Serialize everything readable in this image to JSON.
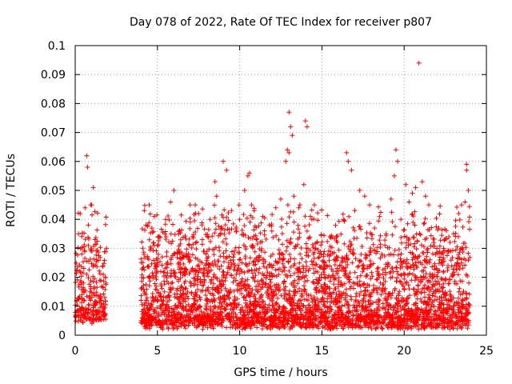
{
  "chart_data": {
    "type": "scatter",
    "title": "Day 078 of 2022, Rate Of TEC Index for receiver p807",
    "xlabel": "GPS time / hours",
    "ylabel": "ROTI / TECUs",
    "xlim": [
      0,
      25
    ],
    "ylim": [
      0,
      0.1
    ],
    "xticks": [
      "0",
      "5",
      "10",
      "15",
      "20",
      "25"
    ],
    "yticks": [
      "0",
      "0.01",
      "0.02",
      "0.03",
      "0.04",
      "0.05",
      "0.06",
      "0.07",
      "0.08",
      "0.09",
      "0.1"
    ],
    "grid": true,
    "marker": "+",
    "color": "#ff0000",
    "series": [
      {
        "points": [
          [
            0.1,
            0.012
          ],
          [
            0.2,
            0.035
          ],
          [
            0.3,
            0.042
          ],
          [
            0.4,
            0.028
          ],
          [
            0.5,
            0.018
          ],
          [
            0.6,
            0.044
          ],
          [
            0.7,
            0.021
          ],
          [
            0.8,
            0.038
          ],
          [
            0.9,
            0.015
          ],
          [
            1.0,
            0.045
          ],
          [
            0.7,
            0.062
          ],
          [
            0.75,
            0.058
          ],
          [
            1.1,
            0.051
          ],
          [
            1.2,
            0.033
          ],
          [
            1.3,
            0.026
          ],
          [
            1.5,
            0.019
          ],
          [
            1.6,
            0.012
          ],
          [
            1.7,
            0.009
          ],
          [
            1.8,
            0.013
          ],
          [
            1.9,
            0.03
          ],
          [
            4.2,
            0.043
          ],
          [
            4.3,
            0.038
          ],
          [
            4.5,
            0.045
          ],
          [
            4.6,
            0.03
          ],
          [
            4.8,
            0.041
          ],
          [
            5.2,
            0.022
          ],
          [
            5.5,
            0.04
          ],
          [
            5.8,
            0.046
          ],
          [
            6.0,
            0.05
          ],
          [
            6.3,
            0.035
          ],
          [
            6.6,
            0.027
          ],
          [
            7.0,
            0.039
          ],
          [
            7.3,
            0.045
          ],
          [
            7.5,
            0.042
          ],
          [
            7.8,
            0.029
          ],
          [
            8.2,
            0.04
          ],
          [
            8.5,
            0.053
          ],
          [
            8.6,
            0.048
          ],
          [
            9.0,
            0.06
          ],
          [
            9.2,
            0.057
          ],
          [
            9.5,
            0.043
          ],
          [
            9.8,
            0.036
          ],
          [
            10.0,
            0.04
          ],
          [
            10.3,
            0.05
          ],
          [
            10.5,
            0.055
          ],
          [
            10.6,
            0.056
          ],
          [
            11.0,
            0.033
          ],
          [
            11.4,
            0.041
          ],
          [
            11.8,
            0.038
          ],
          [
            12.2,
            0.044
          ],
          [
            12.5,
            0.047
          ],
          [
            12.8,
            0.06
          ],
          [
            12.9,
            0.064
          ],
          [
            13.0,
            0.077
          ],
          [
            13.1,
            0.072
          ],
          [
            13.2,
            0.069
          ],
          [
            13.0,
            0.063
          ],
          [
            13.3,
            0.048
          ],
          [
            13.6,
            0.044
          ],
          [
            13.9,
            0.052
          ],
          [
            14.0,
            0.074
          ],
          [
            14.1,
            0.072
          ],
          [
            14.3,
            0.041
          ],
          [
            14.7,
            0.032
          ],
          [
            15.1,
            0.028
          ],
          [
            15.5,
            0.034
          ],
          [
            15.9,
            0.027
          ],
          [
            16.3,
            0.04
          ],
          [
            16.5,
            0.063
          ],
          [
            16.6,
            0.06
          ],
          [
            16.8,
            0.057
          ],
          [
            17.0,
            0.043
          ],
          [
            17.3,
            0.05
          ],
          [
            17.6,
            0.048
          ],
          [
            17.9,
            0.045
          ],
          [
            18.2,
            0.037
          ],
          [
            18.5,
            0.041
          ],
          [
            18.9,
            0.035
          ],
          [
            19.2,
            0.047
          ],
          [
            19.4,
            0.055
          ],
          [
            19.5,
            0.064
          ],
          [
            19.6,
            0.06
          ],
          [
            19.8,
            0.04
          ],
          [
            20.1,
            0.052
          ],
          [
            20.3,
            0.046
          ],
          [
            20.5,
            0.049
          ],
          [
            20.7,
            0.051
          ],
          [
            20.9,
            0.094
          ],
          [
            21.1,
            0.053
          ],
          [
            21.3,
            0.048
          ],
          [
            21.5,
            0.045
          ],
          [
            21.8,
            0.032
          ],
          [
            22.1,
            0.037
          ],
          [
            22.4,
            0.03
          ],
          [
            22.7,
            0.029
          ],
          [
            23.0,
            0.035
          ],
          [
            23.3,
            0.034
          ],
          [
            23.5,
            0.03
          ],
          [
            23.7,
            0.046
          ],
          [
            23.8,
            0.059
          ],
          [
            23.9,
            0.05
          ],
          [
            23.8,
            0.057
          ]
        ]
      }
    ],
    "dense_band": {
      "segments": [
        {
          "x": [
            0.0,
            1.9
          ],
          "ymin": 0.004,
          "ymax": 0.045,
          "density": 260
        },
        {
          "x": [
            4.0,
            24.0
          ],
          "ymin": 0.002,
          "ymax": 0.045,
          "density": 3600
        }
      ]
    }
  }
}
